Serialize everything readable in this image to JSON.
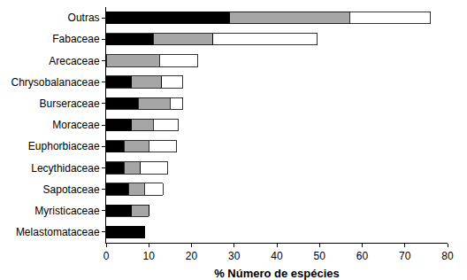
{
  "chart_data": {
    "type": "bar",
    "orientation": "horizontal",
    "stacked": true,
    "grid": false,
    "xlabel": "% Número de espécies",
    "categories": [
      "Outras",
      "Fabaceae",
      "Arecaceae",
      "Chrysobalanaceae",
      "Burseraceae",
      "Moraceae",
      "Euphorbiaceae",
      "Lecythidaceae",
      "Sapotaceae",
      "Myristicaceae",
      "Melastomataceae"
    ],
    "series": [
      {
        "color": "#000000",
        "values": [
          29,
          11,
          0,
          6,
          7.5,
          6,
          4.2,
          4.2,
          5.2,
          6,
          9
        ]
      },
      {
        "color": "#a6a6a6",
        "values": [
          28,
          14,
          12.5,
          7,
          7.5,
          5,
          5.8,
          3.8,
          3.8,
          4,
          0
        ]
      },
      {
        "color": "#ffffff",
        "values": [
          19,
          24.5,
          9,
          5,
          3,
          5.8,
          6.5,
          6.5,
          4.3,
          0,
          0
        ]
      }
    ],
    "xlim": [
      0,
      80
    ],
    "xticks": [
      0,
      10,
      20,
      30,
      40,
      50,
      60,
      70,
      80
    ]
  }
}
